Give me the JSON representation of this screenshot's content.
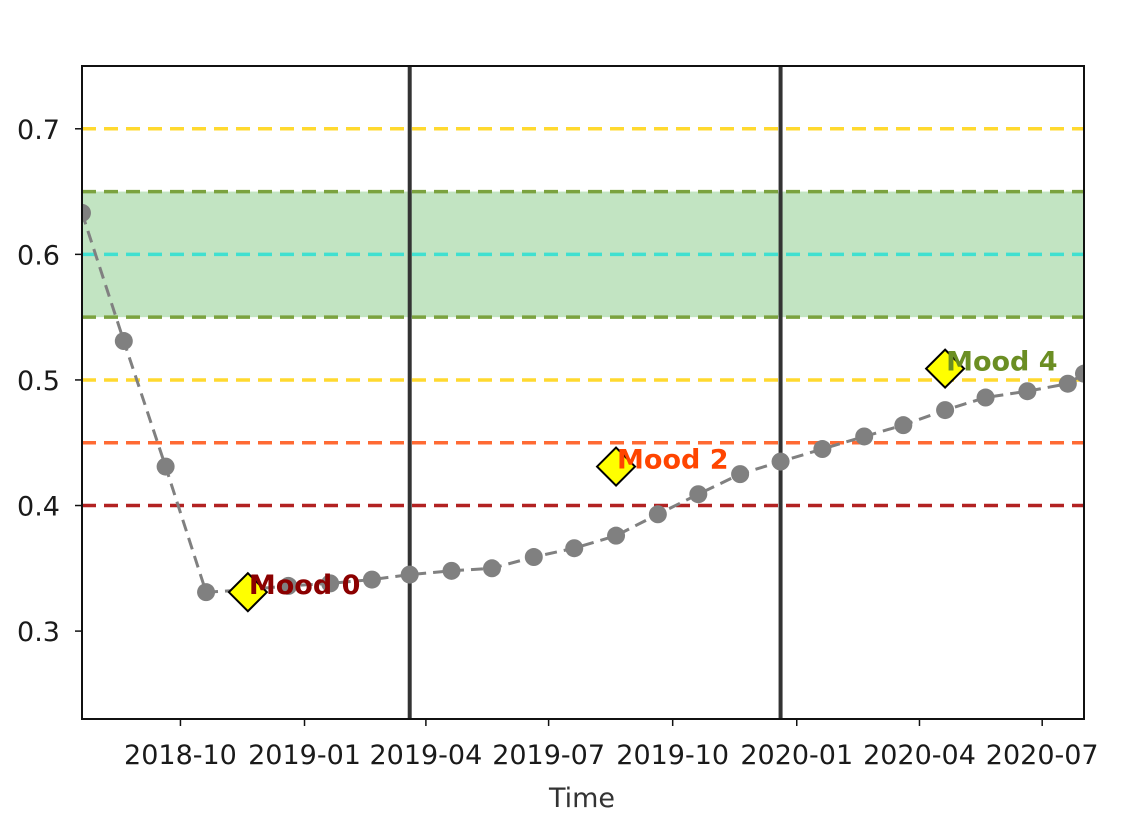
{
  "chart_data": {
    "type": "line",
    "title": "",
    "xlabel": "Time",
    "ylabel": "",
    "x_ticks": [
      "2018-10",
      "2019-01",
      "2019-04",
      "2019-07",
      "2019-10",
      "2020-01",
      "2020-04",
      "2020-07"
    ],
    "y_ticks": [
      "0.3",
      "0.4",
      "0.5",
      "0.6",
      "0.7"
    ],
    "xlim": [
      "2018-07-20",
      "2020-08-01"
    ],
    "ylim": [
      0.23,
      0.75
    ],
    "grid": false,
    "series": [
      {
        "style": "dashed line with circle markers",
        "color": "#808080",
        "points": [
          {
            "x": "2018-07-20",
            "y": 0.633
          },
          {
            "x": "2018-08-20",
            "y": 0.531
          },
          {
            "x": "2018-09-20",
            "y": 0.431
          },
          {
            "x": "2018-10-20",
            "y": 0.331
          },
          {
            "x": "2018-11-20",
            "y": 0.333
          },
          {
            "x": "2018-12-20",
            "y": 0.336
          },
          {
            "x": "2019-01-20",
            "y": 0.338
          },
          {
            "x": "2019-02-20",
            "y": 0.341
          },
          {
            "x": "2019-03-20",
            "y": 0.345
          },
          {
            "x": "2019-04-20",
            "y": 0.348
          },
          {
            "x": "2019-05-20",
            "y": 0.35
          },
          {
            "x": "2019-06-20",
            "y": 0.359
          },
          {
            "x": "2019-07-20",
            "y": 0.366
          },
          {
            "x": "2019-08-20",
            "y": 0.376
          },
          {
            "x": "2019-09-20",
            "y": 0.393
          },
          {
            "x": "2019-10-20",
            "y": 0.409
          },
          {
            "x": "2019-11-20",
            "y": 0.425
          },
          {
            "x": "2019-12-20",
            "y": 0.435
          },
          {
            "x": "2020-01-20",
            "y": 0.445
          },
          {
            "x": "2020-02-20",
            "y": 0.455
          },
          {
            "x": "2020-03-20",
            "y": 0.464
          },
          {
            "x": "2020-04-20",
            "y": 0.476
          },
          {
            "x": "2020-05-20",
            "y": 0.486
          },
          {
            "x": "2020-06-20",
            "y": 0.491
          },
          {
            "x": "2020-07-20",
            "y": 0.497
          },
          {
            "x": "2020-08-01",
            "y": 0.505
          }
        ]
      }
    ],
    "horizontal_lines": [
      {
        "y": 0.7,
        "color": "#FFD92F",
        "style": "dashed"
      },
      {
        "y": 0.65,
        "color": "#7BA23F",
        "style": "dashed"
      },
      {
        "y": 0.6,
        "color": "#40E0D0",
        "style": "dashed"
      },
      {
        "y": 0.55,
        "color": "#7BA23F",
        "style": "dashed"
      },
      {
        "y": 0.5,
        "color": "#FFD92F",
        "style": "dashed"
      },
      {
        "y": 0.45,
        "color": "#FF6A33",
        "style": "dashed"
      },
      {
        "y": 0.4,
        "color": "#B22222",
        "style": "dashed"
      }
    ],
    "band": {
      "y_min": 0.55,
      "y_max": 0.65,
      "color": "#A8D8A8"
    },
    "vertical_lines": [
      "2019-03-20",
      "2019-12-20"
    ],
    "annotations": [
      {
        "text": "Mood 0",
        "x": "2018-11-20",
        "y": 0.331,
        "color": "#8B0000"
      },
      {
        "text": "Mood 2",
        "x": "2019-08-20",
        "y": 0.431,
        "color": "#FF4500"
      },
      {
        "text": "Mood 4",
        "x": "2020-04-20",
        "y": 0.509,
        "color": "#6B8E23"
      }
    ],
    "marker_color": "#FFFF00"
  }
}
